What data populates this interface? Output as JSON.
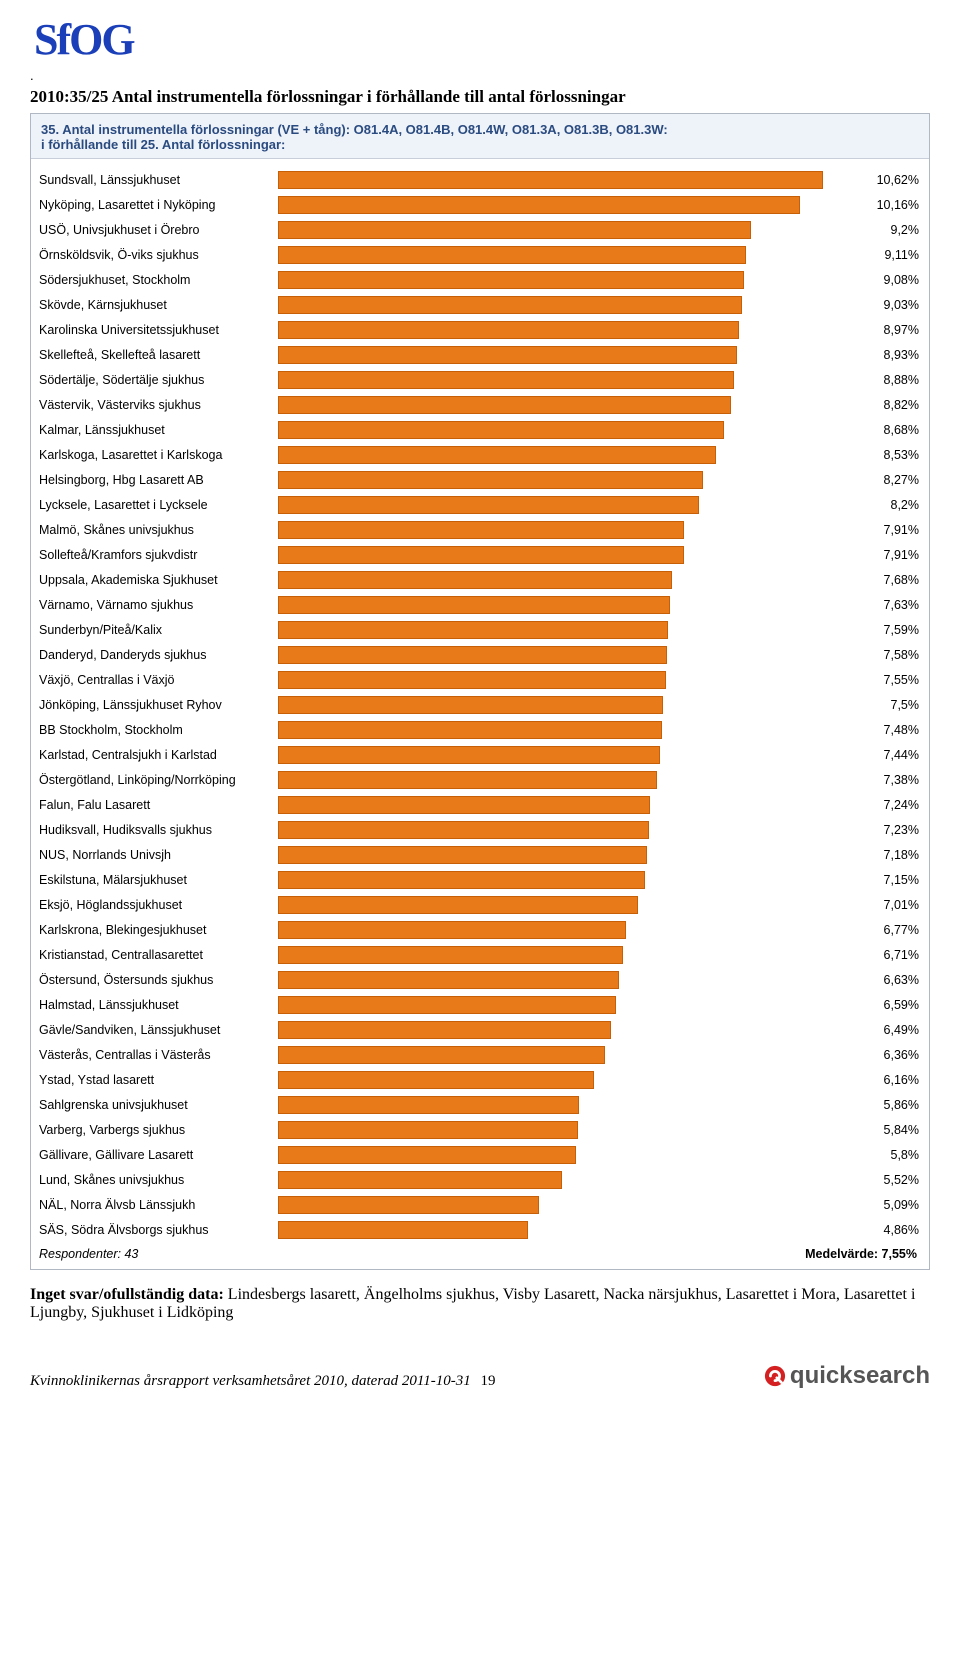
{
  "logo_text": "SfOG",
  "page_title": "2010:35/25 Antal instrumentella förlossningar i förhållande till antal förlossningar",
  "chart": {
    "type": "bar",
    "header_line1": "35. Antal instrumentella förlossningar (VE + tång): O81.4A, O81.4B, O81.4W, O81.3A, O81.3B, O81.3W:",
    "header_line2": "i förhållande till  25. Antal förlossningar:",
    "bar_color": "#e87a1a",
    "bar_border_color": "#c65f05",
    "header_bg": "#eef2f9",
    "header_text_color": "#2a4b80",
    "axis_max": 11.0,
    "rows": [
      {
        "label": "Sundsvall, Länssjukhuset",
        "value": 10.62,
        "display": "10,62%"
      },
      {
        "label": "Nyköping, Lasarettet i Nyköping",
        "value": 10.16,
        "display": "10,16%"
      },
      {
        "label": "USÖ, Univsjukhuset i Örebro",
        "value": 9.2,
        "display": "9,2%"
      },
      {
        "label": "Örnsköldsvik, Ö-viks sjukhus",
        "value": 9.11,
        "display": "9,11%"
      },
      {
        "label": "Södersjukhuset, Stockholm",
        "value": 9.08,
        "display": "9,08%"
      },
      {
        "label": "Skövde, Kärnsjukhuset",
        "value": 9.03,
        "display": "9,03%"
      },
      {
        "label": "Karolinska Universitetssjukhuset",
        "value": 8.97,
        "display": "8,97%"
      },
      {
        "label": "Skellefteå, Skellefteå lasarett",
        "value": 8.93,
        "display": "8,93%"
      },
      {
        "label": "Södertälje, Södertälje sjukhus",
        "value": 8.88,
        "display": "8,88%"
      },
      {
        "label": "Västervik, Västerviks sjukhus",
        "value": 8.82,
        "display": "8,82%"
      },
      {
        "label": "Kalmar, Länssjukhuset",
        "value": 8.68,
        "display": "8,68%"
      },
      {
        "label": "Karlskoga, Lasarettet i Karlskoga",
        "value": 8.53,
        "display": "8,53%"
      },
      {
        "label": "Helsingborg, Hbg Lasarett AB",
        "value": 8.27,
        "display": "8,27%"
      },
      {
        "label": "Lycksele, Lasarettet i Lycksele",
        "value": 8.2,
        "display": "8,2%"
      },
      {
        "label": "Malmö, Skånes univsjukhus",
        "value": 7.91,
        "display": "7,91%"
      },
      {
        "label": "Sollefteå/Kramfors sjukvdistr",
        "value": 7.91,
        "display": "7,91%"
      },
      {
        "label": "Uppsala, Akademiska Sjukhuset",
        "value": 7.68,
        "display": "7,68%"
      },
      {
        "label": "Värnamo, Värnamo sjukhus",
        "value": 7.63,
        "display": "7,63%"
      },
      {
        "label": "Sunderbyn/Piteå/Kalix",
        "value": 7.59,
        "display": "7,59%"
      },
      {
        "label": "Danderyd, Danderyds sjukhus",
        "value": 7.58,
        "display": "7,58%"
      },
      {
        "label": "Växjö, Centrallas i Växjö",
        "value": 7.55,
        "display": "7,55%"
      },
      {
        "label": "Jönköping, Länssjukhuset Ryhov",
        "value": 7.5,
        "display": "7,5%"
      },
      {
        "label": "BB Stockholm, Stockholm",
        "value": 7.48,
        "display": "7,48%"
      },
      {
        "label": "Karlstad, Centralsjukh i Karlstad",
        "value": 7.44,
        "display": "7,44%"
      },
      {
        "label": "Östergötland, Linköping/Norrköping",
        "value": 7.38,
        "display": "7,38%"
      },
      {
        "label": "Falun, Falu Lasarett",
        "value": 7.24,
        "display": "7,24%"
      },
      {
        "label": "Hudiksvall, Hudiksvalls sjukhus",
        "value": 7.23,
        "display": "7,23%"
      },
      {
        "label": "NUS, Norrlands Univsjh",
        "value": 7.18,
        "display": "7,18%"
      },
      {
        "label": "Eskilstuna, Mälarsjukhuset",
        "value": 7.15,
        "display": "7,15%"
      },
      {
        "label": "Eksjö, Höglandssjukhuset",
        "value": 7.01,
        "display": "7,01%"
      },
      {
        "label": "Karlskrona, Blekingesjukhuset",
        "value": 6.77,
        "display": "6,77%"
      },
      {
        "label": "Kristianstad, Centrallasarettet",
        "value": 6.71,
        "display": "6,71%"
      },
      {
        "label": "Östersund, Östersunds sjukhus",
        "value": 6.63,
        "display": "6,63%"
      },
      {
        "label": "Halmstad, Länssjukhuset",
        "value": 6.59,
        "display": "6,59%"
      },
      {
        "label": "Gävle/Sandviken, Länssjukhuset",
        "value": 6.49,
        "display": "6,49%"
      },
      {
        "label": "Västerås, Centrallas i Västerås",
        "value": 6.36,
        "display": "6,36%"
      },
      {
        "label": "Ystad, Ystad lasarett",
        "value": 6.16,
        "display": "6,16%"
      },
      {
        "label": "Sahlgrenska univsjukhuset",
        "value": 5.86,
        "display": "5,86%"
      },
      {
        "label": "Varberg, Varbergs sjukhus",
        "value": 5.84,
        "display": "5,84%"
      },
      {
        "label": "Gällivare, Gällivare Lasarett",
        "value": 5.8,
        "display": "5,8%"
      },
      {
        "label": "Lund, Skånes univsjukhus",
        "value": 5.52,
        "display": "5,52%"
      },
      {
        "label": "NÄL, Norra Älvsb Länssjukh",
        "value": 5.09,
        "display": "5,09%"
      },
      {
        "label": "SÄS, Södra Älvsborgs sjukhus",
        "value": 4.86,
        "display": "4,86%"
      }
    ],
    "respondents_label": "Respondenter: 43",
    "average_label": "Medelvärde: 7,55%"
  },
  "missing_label": "Inget svar/ofullständig data:",
  "missing_text": " Lindesbergs lasarett, Ängelholms sjukhus, Visby Lasarett, Nacka närsjukhus, Lasarettet i Mora, Lasarettet i Ljungby, Sjukhuset i Lidköping",
  "footer_text": "Kvinnoklinikernas årsrapport verksamhetsåret 2010, daterad 2011-10-31",
  "page_number": "19",
  "qs_brand": "quicksearch"
}
